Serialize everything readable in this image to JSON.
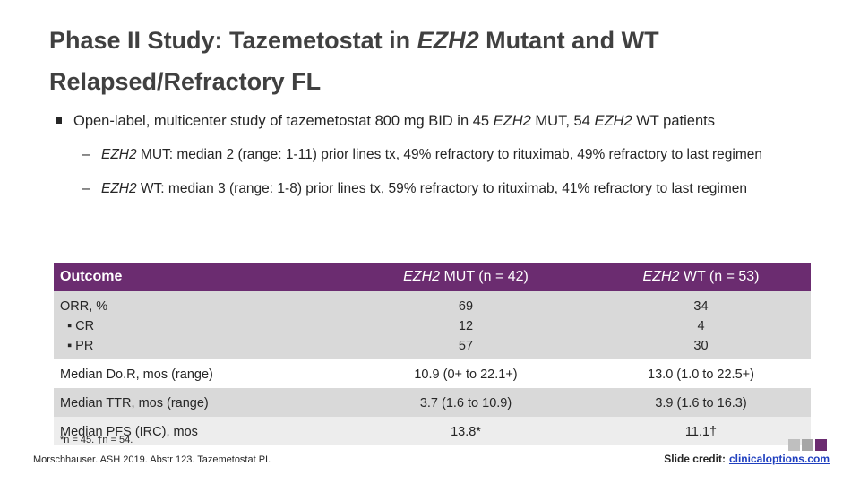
{
  "title": [
    {
      "t": "Phase II Study: Tazemetostat in "
    },
    {
      "t": "EZH2",
      "i": true
    },
    {
      "t": " Mutant and WT Relapsed/Refractory FL"
    }
  ],
  "bullets": [
    {
      "runs": [
        {
          "t": "Open-label, multicenter study of tazemetostat 800 mg BID in 45 "
        },
        {
          "t": "EZH2",
          "i": true
        },
        {
          "t": " MUT, 54 "
        },
        {
          "t": "EZH2",
          "i": true
        },
        {
          "t": " WT patients"
        }
      ],
      "sub": [
        {
          "runs": [
            {
              "t": "EZH2",
              "i": true
            },
            {
              "t": " MUT: median 2 (range: 1-11) prior lines tx, 49% refractory to rituximab, 49% refractory to last regimen"
            }
          ]
        },
        {
          "runs": [
            {
              "t": "EZH2",
              "i": true
            },
            {
              "t": " WT: median 3 (range: 1-8) prior lines tx, 59% refractory to rituximab, 41% refractory to last regimen"
            }
          ]
        }
      ]
    }
  ],
  "table": {
    "header": [
      [
        {
          "t": "Outcome"
        }
      ],
      [
        {
          "t": "EZH2",
          "i": true
        },
        {
          "t": " MUT (n = 42)"
        }
      ],
      [
        {
          "t": "EZH2",
          "i": true
        },
        {
          "t": " WT (n = 53)"
        }
      ]
    ],
    "rows": [
      {
        "label": "ORR, %",
        "sub": [
          "CR",
          "PR"
        ],
        "cells": [
          [
            "69",
            "12",
            "57"
          ],
          [
            "34",
            "4",
            "30"
          ]
        ]
      },
      {
        "label": "Median Do.R, mos (range)",
        "cells": [
          [
            "10.9 (0+ to 22.1+)"
          ],
          [
            "13.0 (1.0 to 22.5+)"
          ]
        ]
      },
      {
        "label": "Median TTR, mos (range)",
        "cells": [
          [
            "3.7 (1.6 to 10.9)"
          ],
          [
            "3.9 (1.6 to 16.3)"
          ]
        ]
      },
      {
        "label": "Median PFS (IRC), mos",
        "cells": [
          [
            "13.8*"
          ],
          [
            "11.1†"
          ]
        ]
      }
    ]
  },
  "footnote": "*n = 45. †n = 54.",
  "reference": "Morschhauser. ASH 2019. Abstr 123. Tazemetostat PI.",
  "credit": {
    "label": "Slide credit:",
    "link": "clinicaloptions.com"
  }
}
